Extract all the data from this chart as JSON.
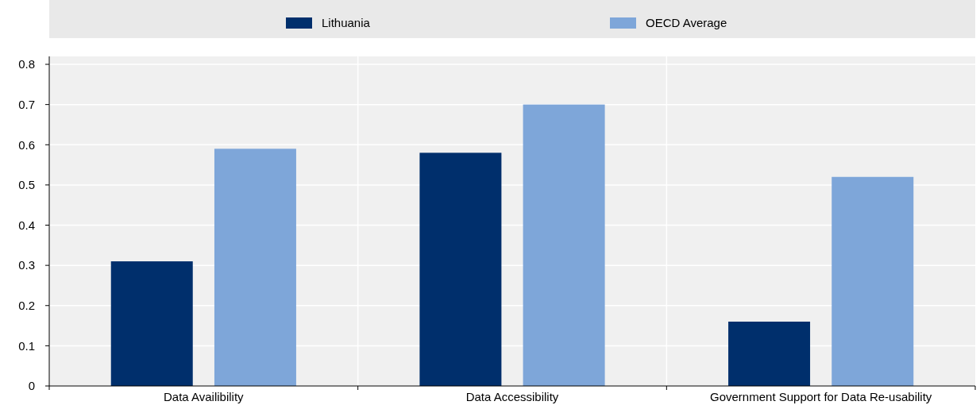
{
  "chart_data": {
    "type": "bar",
    "categories": [
      "Data Availibility",
      "Data Accessibility",
      "Government Support for Data Re-usability"
    ],
    "series": [
      {
        "name": "Lithuania",
        "color": "#002f6c",
        "values": [
          0.31,
          0.58,
          0.16
        ]
      },
      {
        "name": "OECD Average",
        "color": "#7ea6d9",
        "values": [
          0.59,
          0.7,
          0.52
        ]
      }
    ],
    "ylim": [
      0,
      0.8
    ],
    "yticks": [
      0,
      0.1,
      0.2,
      0.3,
      0.4,
      0.5,
      0.6,
      0.7,
      0.8
    ],
    "grid": "y",
    "legend": "top"
  }
}
